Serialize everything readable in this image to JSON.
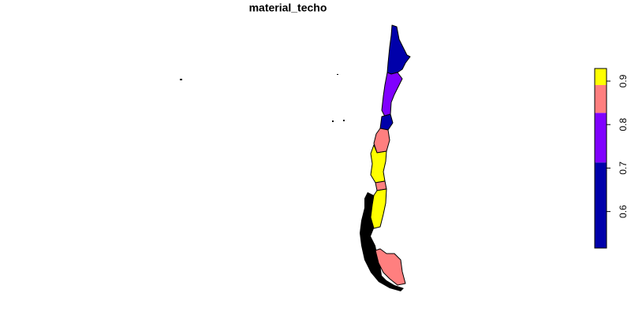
{
  "chart_data": {
    "type": "choropleth",
    "title": "material_techo",
    "legend": {
      "breaks": [
        0.516,
        0.713,
        0.827,
        0.891,
        0.929
      ],
      "colors": [
        "#0000AA",
        "#8000FF",
        "#FF7F7F",
        "#FFFF00"
      ],
      "ticks": [
        0.6,
        0.7,
        0.8,
        0.9
      ]
    }
  }
}
